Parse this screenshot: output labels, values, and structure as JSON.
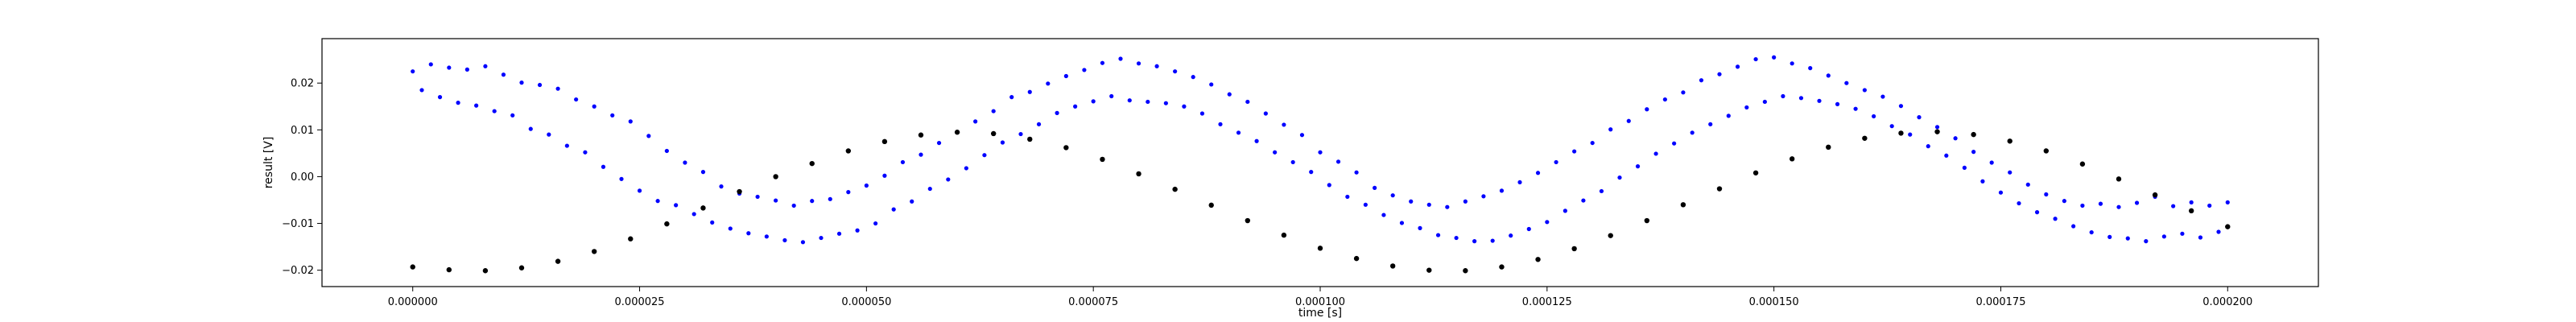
{
  "chart_data": {
    "type": "scatter",
    "title": "",
    "xlabel": "time [s]",
    "ylabel": "result [V]",
    "xlim": [
      -1e-05,
      0.00021
    ],
    "ylim": [
      -0.0235,
      0.0295
    ],
    "grid": false,
    "x_ticks": [
      0.0,
      2.5e-05,
      5e-05,
      7.5e-05,
      0.0001,
      0.000125,
      0.00015,
      0.000175,
      0.0002
    ],
    "x_tick_labels": [
      "0.000000",
      "0.000025",
      "0.000050",
      "0.000075",
      "0.000100",
      "0.000125",
      "0.000150",
      "0.000175",
      "0.000200"
    ],
    "y_ticks": [
      -0.02,
      -0.01,
      0.0,
      0.01,
      0.02
    ],
    "y_tick_labels": [
      "−0.02",
      "−0.01",
      "0.00",
      "0.01",
      "0.02"
    ],
    "series": [
      {
        "color": "#0000ff",
        "marker": "dot",
        "x": [
          0.0,
          2e-06,
          4e-06,
          6e-06,
          8e-06,
          1e-05,
          1.2e-05,
          1.4e-05,
          1.6e-05,
          1.8e-05,
          2e-05,
          2.2e-05,
          2.4e-05,
          2.6e-05,
          2.8e-05,
          3e-05,
          3.2e-05,
          3.4e-05,
          3.6e-05,
          3.8e-05,
          4e-05,
          4.2e-05,
          4.4e-05,
          4.6e-05,
          4.8e-05,
          5e-05,
          5.2e-05,
          5.4e-05,
          5.6e-05,
          5.8e-05,
          6e-05,
          6.2e-05,
          6.4e-05,
          6.6e-05,
          6.8e-05,
          7e-05,
          7.2e-05,
          7.4e-05,
          7.6e-05,
          7.8e-05,
          8e-05,
          8.2e-05,
          8.4e-05,
          8.6e-05,
          8.8e-05,
          9e-05,
          9.2e-05,
          9.4e-05,
          9.6e-05,
          9.8e-05,
          0.0001,
          0.000102,
          0.000104,
          0.000106,
          0.000108,
          0.00011,
          0.000112,
          0.000114,
          0.000116,
          0.000118,
          0.00012,
          0.000122,
          0.000124,
          0.000126,
          0.000128,
          0.00013,
          0.000132,
          0.000134,
          0.000136,
          0.000138,
          0.00014,
          0.000142,
          0.000144,
          0.000146,
          0.000148,
          0.00015,
          0.000152,
          0.000154,
          0.000156,
          0.000158,
          0.00016,
          0.000162,
          0.000164,
          0.000166,
          0.000168,
          0.00017,
          0.000172,
          0.000174,
          0.000176,
          0.000178,
          0.00018,
          0.000182,
          0.000184,
          0.000186,
          0.000188,
          0.00019,
          0.000192,
          0.000194,
          0.000196,
          0.000198,
          0.0002,
          1e-06,
          3e-06,
          5e-06,
          7e-06,
          9e-06,
          1.1e-05,
          1.3e-05,
          1.5e-05,
          1.7e-05,
          1.9e-05,
          2.1e-05,
          2.3e-05,
          2.5e-05,
          2.7e-05,
          2.9e-05,
          3.1e-05,
          3.3e-05,
          3.5e-05,
          3.7e-05,
          3.9e-05,
          4.1e-05,
          4.3e-05,
          4.5e-05,
          4.7e-05,
          4.9e-05,
          5.1e-05,
          5.3e-05,
          5.5e-05,
          5.7e-05,
          5.9e-05,
          6.1e-05,
          6.3e-05,
          6.5e-05,
          6.7e-05,
          6.9e-05,
          7.1e-05,
          7.3e-05,
          7.5e-05,
          7.7e-05,
          7.9e-05,
          8.1e-05,
          8.3e-05,
          8.5e-05,
          8.7e-05,
          8.9e-05,
          9.1e-05,
          9.3e-05,
          9.5e-05,
          9.7e-05,
          9.9e-05,
          0.000101,
          0.000103,
          0.000105,
          0.000107,
          0.000109,
          0.000111,
          0.000113,
          0.000115,
          0.000117,
          0.000119,
          0.000121,
          0.000123,
          0.000125,
          0.000127,
          0.000129,
          0.000131,
          0.000133,
          0.000135,
          0.000137,
          0.000139,
          0.000141,
          0.000143,
          0.000145,
          0.000147,
          0.000149,
          0.000151,
          0.000153,
          0.000155,
          0.000157,
          0.000159,
          0.000161,
          0.000163,
          0.000165,
          0.000167,
          0.000169,
          0.000171,
          0.000173,
          0.000175,
          0.000177,
          0.000179,
          0.000181,
          0.000183,
          0.000185,
          0.000187,
          0.000189,
          0.000191,
          0.000193,
          0.000195,
          0.000197,
          0.000199
        ],
        "y": [
          0.0225,
          0.024,
          0.0233,
          0.0229,
          0.0236,
          0.0218,
          0.0201,
          0.0196,
          0.0188,
          0.0165,
          0.015,
          0.0131,
          0.0118,
          0.0087,
          0.0055,
          0.003,
          0.001,
          -0.0021,
          -0.0036,
          -0.0043,
          -0.0051,
          -0.0062,
          -0.0052,
          -0.0048,
          -0.0033,
          -0.0019,
          0.0002,
          0.0031,
          0.0047,
          0.0072,
          0.0095,
          0.0118,
          0.014,
          0.017,
          0.0181,
          0.0199,
          0.0215,
          0.0228,
          0.0243,
          0.0252,
          0.0242,
          0.0236,
          0.0225,
          0.0213,
          0.0197,
          0.0176,
          0.016,
          0.0135,
          0.0111,
          0.0089,
          0.0052,
          0.0032,
          0.0009,
          -0.0024,
          -0.004,
          -0.0053,
          -0.006,
          -0.0065,
          -0.0053,
          -0.0042,
          -0.003,
          -0.0012,
          0.0008,
          0.0031,
          0.0054,
          0.0072,
          0.0101,
          0.0119,
          0.0144,
          0.0165,
          0.018,
          0.0206,
          0.0219,
          0.0235,
          0.0251,
          0.0255,
          0.0242,
          0.0232,
          0.0216,
          0.02,
          0.0185,
          0.0171,
          0.0151,
          0.0127,
          0.0106,
          0.0082,
          0.0053,
          0.003,
          0.0009,
          -0.0017,
          -0.0038,
          -0.0052,
          -0.0062,
          -0.0058,
          -0.0065,
          -0.0056,
          -0.0043,
          -0.0063,
          -0.0055,
          -0.0062,
          -0.0055,
          0.0185,
          0.017,
          0.0158,
          0.0152,
          0.014,
          0.0131,
          0.0102,
          0.009,
          0.0066,
          0.0052,
          0.0021,
          -0.0005,
          -0.003,
          -0.0052,
          -0.0061,
          -0.008,
          -0.0098,
          -0.0111,
          -0.0121,
          -0.0128,
          -0.0136,
          -0.014,
          -0.0131,
          -0.0122,
          -0.0115,
          -0.01,
          -0.007,
          -0.0053,
          -0.0026,
          -0.0006,
          0.0018,
          0.0046,
          0.0073,
          0.0091,
          0.0112,
          0.0136,
          0.015,
          0.0161,
          0.0172,
          0.0163,
          0.016,
          0.0157,
          0.015,
          0.0135,
          0.0112,
          0.0094,
          0.0076,
          0.0052,
          0.0031,
          0.001,
          -0.0018,
          -0.0043,
          -0.006,
          -0.0082,
          -0.0099,
          -0.011,
          -0.0125,
          -0.0131,
          -0.0138,
          -0.0137,
          -0.0126,
          -0.0112,
          -0.0097,
          -0.0073,
          -0.0051,
          -0.0031,
          -0.0002,
          0.0022,
          0.0049,
          0.0071,
          0.0094,
          0.0112,
          0.013,
          0.0148,
          0.016,
          0.0172,
          0.0168,
          0.0162,
          0.0155,
          0.0145,
          0.0129,
          0.0108,
          0.009,
          0.0065,
          0.0045,
          0.0019,
          -0.001,
          -0.0034,
          -0.0057,
          -0.0076,
          -0.009,
          -0.0106,
          -0.0119,
          -0.0129,
          -0.0132,
          -0.0138,
          -0.0128,
          -0.0122,
          -0.013,
          -0.0118
        ]
      },
      {
        "color": "#000000",
        "marker": "dot",
        "x": [
          0.0,
          4e-06,
          8e-06,
          1.2e-05,
          1.6e-05,
          2e-05,
          2.4e-05,
          2.8e-05,
          3.2e-05,
          3.6e-05,
          4e-05,
          4.4e-05,
          4.8e-05,
          5.2e-05,
          5.6e-05,
          6e-05,
          6.4e-05,
          6.8e-05,
          7.2e-05,
          7.6e-05,
          8e-05,
          8.4e-05,
          8.8e-05,
          9.2e-05,
          9.6e-05,
          0.0001,
          0.000104,
          0.000108,
          0.000112,
          0.000116,
          0.00012,
          0.000124,
          0.000128,
          0.000132,
          0.000136,
          0.00014,
          0.000144,
          0.000148,
          0.000152,
          0.000156,
          0.00016,
          0.000164,
          0.000168,
          0.000172,
          0.000176,
          0.00018,
          0.000184,
          0.000188,
          0.000192,
          0.000196,
          0.0002
        ],
        "y": [
          -0.0193,
          -0.0199,
          -0.0201,
          -0.0195,
          -0.0181,
          -0.016,
          -0.0133,
          -0.0101,
          -0.0067,
          -0.0032,
          0.0,
          0.0028,
          0.0055,
          0.0075,
          0.0089,
          0.0095,
          0.0092,
          0.008,
          0.0062,
          0.0037,
          0.0006,
          -0.0027,
          -0.0061,
          -0.0094,
          -0.0125,
          -0.0153,
          -0.0175,
          -0.0191,
          -0.02,
          -0.0201,
          -0.0193,
          -0.0177,
          -0.0154,
          -0.0126,
          -0.0094,
          -0.006,
          -0.0026,
          0.0008,
          0.0038,
          0.0063,
          0.0082,
          0.0093,
          0.0096,
          0.009,
          0.0076,
          0.0055,
          0.0027,
          -0.0005,
          -0.0039,
          -0.0073,
          -0.0107
        ]
      }
    ]
  }
}
